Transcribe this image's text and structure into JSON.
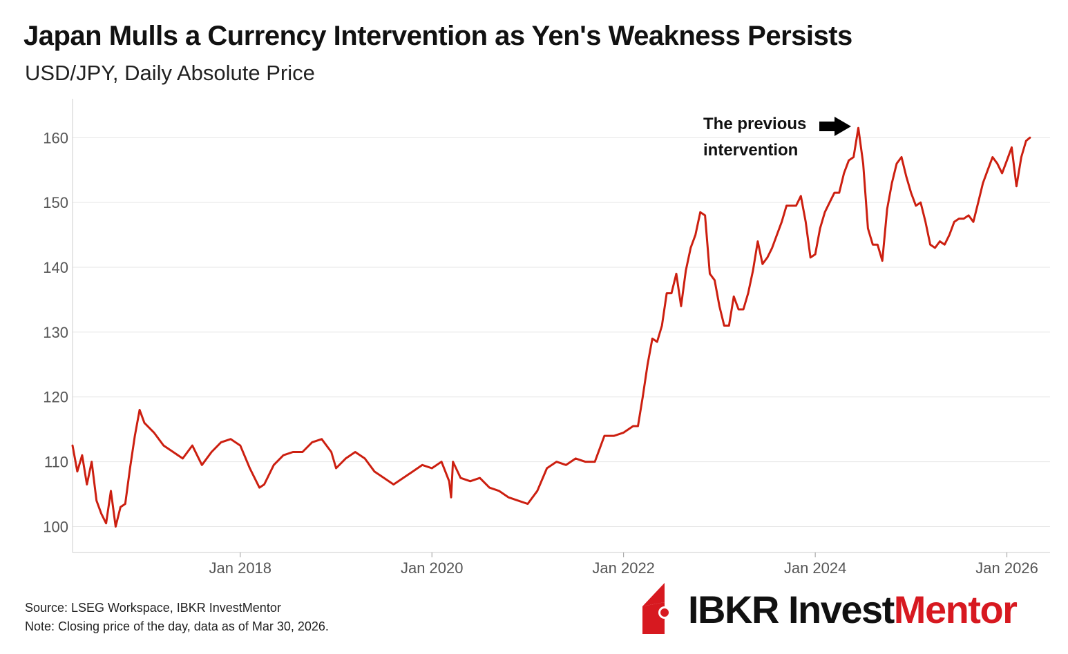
{
  "title": "Japan Mulls a Currency Intervention as Yen's Weakness Persists",
  "subtitle": "USD/JPY, Daily Absolute Price",
  "annotation": {
    "line1": "The previous",
    "line2": "intervention"
  },
  "footer": {
    "source": "Source: LSEG Workspace, IBKR InvestMentor",
    "note": "Note: Closing price of the day, data as of Mar 30, 2026."
  },
  "logo": {
    "part1": "IBKR Invest",
    "part2": "Mentor",
    "icon": "ibkr-flag-icon",
    "accent": "#d71920"
  },
  "colors": {
    "line": "#cc1f10",
    "grid": "#e6e6e6",
    "axis": "#555555",
    "arrow": "#000000"
  },
  "chart_data": {
    "type": "line",
    "title": "Japan Mulls a Currency Intervention as Yen's Weakness Persists",
    "subtitle": "USD/JPY, Daily Absolute Price",
    "xlabel": "",
    "ylabel": "",
    "xlim": [
      2016.25,
      2026.45
    ],
    "ylim": [
      96,
      166
    ],
    "grid": true,
    "yticks": [
      100,
      110,
      120,
      130,
      140,
      150,
      160
    ],
    "ytick_labels": [
      "100",
      "110",
      "120",
      "130",
      "140",
      "150",
      "160"
    ],
    "xticks": [
      2018,
      2020,
      2022,
      2024,
      2026
    ],
    "xtick_labels": [
      "Jan 2018",
      "Jan 2020",
      "Jan 2022",
      "Jan 2024",
      "Jan 2026"
    ],
    "series": [
      {
        "name": "USD/JPY",
        "x": [
          2016.25,
          2016.3,
          2016.35,
          2016.4,
          2016.45,
          2016.5,
          2016.55,
          2016.6,
          2016.65,
          2016.7,
          2016.75,
          2016.8,
          2016.85,
          2016.9,
          2016.95,
          2017.0,
          2017.1,
          2017.2,
          2017.3,
          2017.4,
          2017.5,
          2017.6,
          2017.7,
          2017.8,
          2017.9,
          2018.0,
          2018.1,
          2018.2,
          2018.25,
          2018.35,
          2018.45,
          2018.55,
          2018.65,
          2018.75,
          2018.85,
          2018.95,
          2019.0,
          2019.1,
          2019.2,
          2019.3,
          2019.4,
          2019.5,
          2019.6,
          2019.7,
          2019.8,
          2019.9,
          2020.0,
          2020.1,
          2020.18,
          2020.2,
          2020.22,
          2020.3,
          2020.4,
          2020.5,
          2020.6,
          2020.7,
          2020.8,
          2020.9,
          2021.0,
          2021.1,
          2021.2,
          2021.3,
          2021.4,
          2021.5,
          2021.6,
          2021.7,
          2021.8,
          2021.9,
          2022.0,
          2022.1,
          2022.15,
          2022.2,
          2022.25,
          2022.3,
          2022.35,
          2022.4,
          2022.45,
          2022.5,
          2022.55,
          2022.6,
          2022.65,
          2022.7,
          2022.75,
          2022.8,
          2022.85,
          2022.9,
          2022.95,
          2023.0,
          2023.05,
          2023.1,
          2023.15,
          2023.2,
          2023.25,
          2023.3,
          2023.35,
          2023.4,
          2023.45,
          2023.5,
          2023.55,
          2023.6,
          2023.65,
          2023.7,
          2023.75,
          2023.8,
          2023.85,
          2023.9,
          2023.95,
          2024.0,
          2024.05,
          2024.1,
          2024.15,
          2024.2,
          2024.25,
          2024.3,
          2024.35,
          2024.4,
          2024.45,
          2024.5,
          2024.55,
          2024.6,
          2024.65,
          2024.7,
          2024.75,
          2024.8,
          2024.85,
          2024.9,
          2024.95,
          2025.0,
          2025.05,
          2025.1,
          2025.15,
          2025.2,
          2025.25,
          2025.3,
          2025.35,
          2025.4,
          2025.45,
          2025.5,
          2025.55,
          2025.6,
          2025.65,
          2025.7,
          2025.75,
          2025.8,
          2025.85,
          2025.9,
          2025.95,
          2026.0,
          2026.05,
          2026.1,
          2026.15,
          2026.2,
          2026.24
        ],
        "values": [
          112.5,
          108.5,
          111,
          106.5,
          110,
          104,
          102,
          100.5,
          105.5,
          100,
          103,
          103.5,
          109,
          114,
          118,
          116,
          114.5,
          112.5,
          111.5,
          110.5,
          112.5,
          109.5,
          111.5,
          113,
          113.5,
          112.5,
          109,
          106,
          106.5,
          109.5,
          111,
          111.5,
          111.5,
          113,
          113.5,
          111.5,
          109,
          110.5,
          111.5,
          110.5,
          108.5,
          107.5,
          106.5,
          107.5,
          108.5,
          109.5,
          109,
          110,
          107,
          104.5,
          110,
          107.5,
          107,
          107.5,
          106,
          105.5,
          104.5,
          104,
          103.5,
          105.5,
          109,
          110,
          109.5,
          110.5,
          110,
          110,
          114,
          114,
          114.5,
          115.5,
          115.5,
          120,
          125,
          129,
          128.5,
          131,
          136,
          136,
          139,
          134,
          139.5,
          143,
          145,
          148.5,
          148,
          139,
          138,
          134,
          131,
          131,
          135.5,
          133.5,
          133.5,
          136,
          139.5,
          144,
          140.5,
          141.5,
          143,
          145,
          147,
          149.5,
          149.5,
          149.5,
          151,
          147,
          141.5,
          142,
          146,
          148.5,
          150,
          151.5,
          151.5,
          154.5,
          156.5,
          157,
          161.5,
          156,
          146,
          143.5,
          143.5,
          141,
          149,
          153,
          156,
          157,
          154,
          151.5,
          149.5,
          150,
          147,
          143.5,
          143,
          144,
          143.5,
          145,
          147,
          147.5,
          147.5,
          148,
          147,
          150,
          153,
          155,
          157,
          156,
          154.5,
          156.5,
          158.5,
          152.5,
          157,
          159.5,
          160
        ]
      }
    ]
  }
}
